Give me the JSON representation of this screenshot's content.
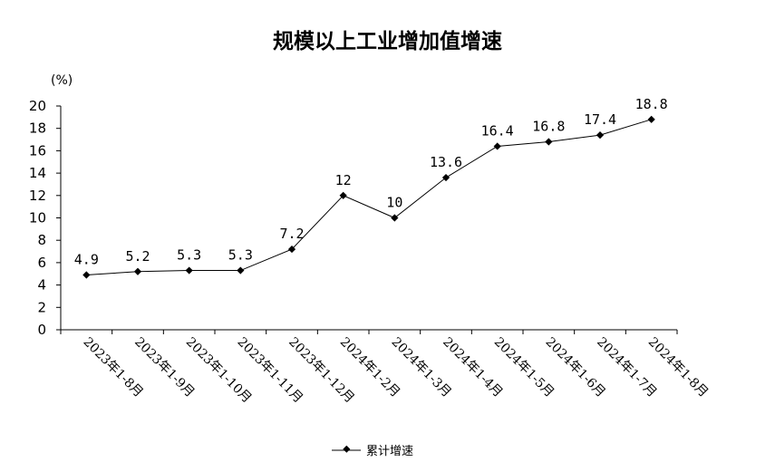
{
  "chart_data": {
    "type": "line",
    "title": "规模以上工业增加值增速",
    "unit_label": "(%)",
    "categories": [
      "2023年1-8月",
      "2023年1-9月",
      "2023年1-10月",
      "2023年1-11月",
      "2023年1-12月",
      "2024年1-2月",
      "2024年1-3月",
      "2024年1-4月",
      "2024年1-5月",
      "2024年1-6月",
      "2024年1-7月",
      "2024年1-8月"
    ],
    "data_labels": [
      "4.9",
      "5.2",
      "5.3",
      "5.3",
      "7.2",
      "12",
      "10",
      "13.6",
      "16.4",
      "16.8",
      "17.4",
      "18.8"
    ],
    "series": [
      {
        "name": "累计增速",
        "values": [
          4.9,
          5.2,
          5.3,
          5.3,
          7.2,
          12,
          10,
          13.6,
          16.4,
          16.8,
          17.4,
          18.8
        ]
      }
    ],
    "ylim": [
      0,
      20
    ],
    "yticks": [
      "0",
      "2",
      "4",
      "6",
      "8",
      "10",
      "12",
      "14",
      "16",
      "18",
      "20"
    ],
    "grid": false,
    "legend_position": "bottom",
    "line_color": "#000000"
  }
}
